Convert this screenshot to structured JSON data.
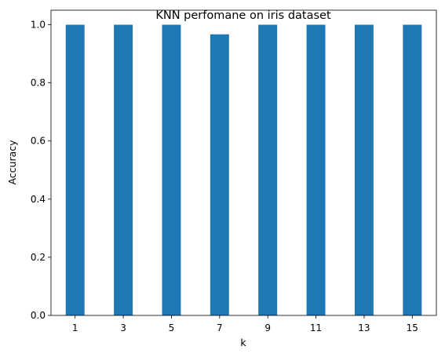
{
  "chart_data": {
    "type": "bar",
    "title": "KNN perfomane on iris dataset",
    "xlabel": "k",
    "ylabel": "Accuracy",
    "categories": [
      "1",
      "3",
      "5",
      "7",
      "9",
      "11",
      "13",
      "15"
    ],
    "values": [
      1.0,
      1.0,
      1.0,
      0.967,
      1.0,
      1.0,
      1.0,
      1.0
    ],
    "yticks": [
      "0.0",
      "0.2",
      "0.4",
      "0.6",
      "0.8",
      "1.0"
    ],
    "ylim": [
      0,
      1.05
    ],
    "grid": false,
    "bar_color": "#1f77b4"
  }
}
